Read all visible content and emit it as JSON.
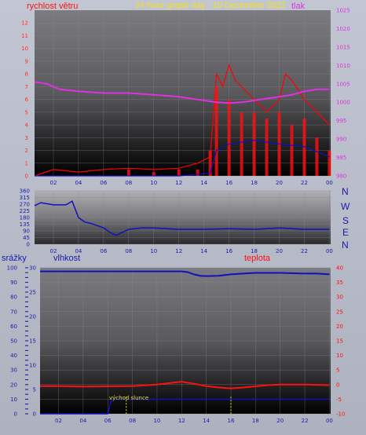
{
  "header": {
    "wind_label": "rychlost větru",
    "title": "24 hour graph day : 10 December 2021",
    "pressure_label": "tlak"
  },
  "direction": {
    "letters": [
      "N",
      "W",
      "S",
      "E",
      "N"
    ]
  },
  "lower": {
    "precip_label": "srážky",
    "humidity_label": "vlhkost",
    "temperature_label": "teplota",
    "sunrise_label": "východ slunce"
  },
  "colors": {
    "wind": "#ff1010",
    "gust": "#ff0000",
    "pressure": "#e030e0",
    "direction": "#1010c0",
    "humidity": "#1010c0",
    "temperature": "#ff1010",
    "sun_marker": "#f0e020",
    "axis_left": "#ff3030",
    "axis_right": "#e030e0"
  },
  "chart_data": [
    {
      "type": "line",
      "title": "24 hour graph day : 10 December 2021",
      "xlabel": "",
      "ylabel_left": "rychlost větru",
      "ylabel_right": "tlak",
      "x_ticks": [
        "02",
        "04",
        "06",
        "08",
        "10",
        "12",
        "14",
        "16",
        "18",
        "20",
        "22",
        "00"
      ],
      "xlim_hours": [
        0.5,
        24.1
      ],
      "ylim_left": [
        0,
        13
      ],
      "yticks_left": [
        0,
        1,
        2,
        3,
        4,
        5,
        6,
        7,
        8,
        9,
        10,
        11,
        12
      ],
      "ylim_right": [
        980,
        1025
      ],
      "yticks_right": [
        980,
        985,
        990,
        995,
        1000,
        1005,
        1010,
        1015,
        1020,
        1025
      ],
      "series": [
        {
          "name": "wind speed",
          "axis": "left",
          "hours": [
            0.5,
            2,
            4,
            6,
            8,
            10,
            12,
            13.5,
            14.5,
            15,
            16,
            17,
            18,
            19,
            20,
            21,
            22,
            23,
            24
          ],
          "values": [
            0,
            0,
            0,
            0,
            0.5,
            0.3,
            0.5,
            0.5,
            2,
            7,
            6,
            5,
            5,
            4.5,
            5,
            4,
            4.5,
            3,
            2
          ]
        },
        {
          "name": "gust",
          "axis": "left",
          "hours": [
            0.5,
            2,
            4,
            6,
            8,
            10,
            12,
            13.5,
            14.5,
            15,
            15.5,
            16,
            16.5,
            17,
            18,
            19,
            20,
            20.5,
            21,
            22,
            23,
            24
          ],
          "values": [
            0,
            0.5,
            0.3,
            0.5,
            0.6,
            0.5,
            0.6,
            1,
            1.5,
            8,
            7,
            8.7,
            7.5,
            7,
            6,
            5,
            6,
            8,
            7.5,
            6,
            5,
            4
          ]
        },
        {
          "name": "wind average",
          "axis": "left",
          "hours": [
            0.5,
            4,
            8,
            12,
            14.5,
            15,
            16,
            18,
            20,
            22,
            24
          ],
          "values": [
            0,
            0,
            0,
            0,
            0.2,
            2,
            2.5,
            2.8,
            2.5,
            2.3,
            1.5
          ]
        },
        {
          "name": "pressure",
          "axis": "right",
          "hours": [
            0.5,
            1.5,
            2.5,
            4,
            6,
            8,
            10,
            12,
            14,
            15,
            16,
            17,
            18,
            19,
            20,
            21,
            22,
            23,
            24
          ],
          "values": [
            1005.5,
            1005,
            1003.5,
            1003,
            1002.5,
            1002.5,
            1002,
            1001.5,
            1000.5,
            1000,
            999.8,
            1000,
            1000.5,
            1001,
            1001.5,
            1002,
            1003,
            1003.5,
            1003.5
          ]
        }
      ]
    },
    {
      "type": "line",
      "title": "",
      "ylabel": "",
      "x_ticks": [
        "02",
        "04",
        "06",
        "08",
        "10",
        "12",
        "14",
        "16",
        "18",
        "20",
        "22",
        "00"
      ],
      "xlim_hours": [
        0.5,
        24.1
      ],
      "ylim": [
        0,
        360
      ],
      "yticks": [
        0,
        45,
        90,
        135,
        180,
        225,
        270,
        315,
        360
      ],
      "ytick_labels": [
        "0",
        "45",
        "90",
        "135",
        "180",
        "225",
        "270",
        "315",
        "360"
      ],
      "series": [
        {
          "name": "wind direction",
          "hours": [
            0.5,
            1,
            2,
            3,
            3.5,
            4,
            4.5,
            5,
            6,
            6.5,
            7,
            8,
            9,
            10,
            12,
            14,
            16,
            18,
            20,
            22,
            24
          ],
          "values": [
            260,
            280,
            265,
            265,
            290,
            180,
            150,
            140,
            110,
            80,
            60,
            100,
            110,
            110,
            100,
            100,
            105,
            100,
            110,
            100,
            100
          ]
        }
      ]
    },
    {
      "type": "line",
      "title": "",
      "ylabel_left": "vlhkost",
      "ylabel_right": "teplota",
      "ylabel_precip": "srážky",
      "x_ticks": [
        "02",
        "04",
        "06",
        "08",
        "10",
        "12",
        "14",
        "16",
        "18",
        "20",
        "22",
        "00"
      ],
      "xlim_hours": [
        0.5,
        24.1
      ],
      "ylim_humidity": [
        0,
        100
      ],
      "yticks_humidity": [
        0,
        10,
        20,
        30,
        40,
        50,
        60,
        70,
        80,
        90,
        100
      ],
      "ylim_precip": [
        0,
        30
      ],
      "yticks_precip": [
        0,
        5,
        10,
        15,
        20,
        25,
        30
      ],
      "ylim_temperature": [
        -10,
        40
      ],
      "yticks_temperature": [
        -10,
        -5,
        0,
        5,
        10,
        15,
        20,
        25,
        30,
        35,
        40
      ],
      "sunrise_hour": 7.5,
      "sunset_hour": 16,
      "series": [
        {
          "name": "humidity",
          "axis": "humidity",
          "hours": [
            0.5,
            4,
            8,
            12,
            12.5,
            13,
            13.5,
            14,
            15,
            16,
            17,
            18,
            20,
            22,
            23,
            24
          ],
          "values": [
            97.5,
            97.5,
            97.5,
            97.5,
            97,
            95.5,
            94.5,
            94.3,
            94.5,
            95.5,
            96,
            96.5,
            96.5,
            96,
            96,
            95.5
          ]
        },
        {
          "name": "temperature",
          "axis": "temperature",
          "hours": [
            0.5,
            2,
            4,
            6,
            8,
            10,
            11,
            12,
            13,
            14,
            15,
            16,
            17,
            18,
            19,
            20,
            22,
            24
          ],
          "values": [
            -0.5,
            -0.5,
            -0.7,
            -0.6,
            -0.5,
            0,
            0.5,
            1,
            0.3,
            -0.5,
            -1,
            -1.3,
            -1,
            -0.6,
            -0.2,
            0,
            0,
            -0.2
          ]
        },
        {
          "name": "precipitation",
          "axis": "precip",
          "hours": [
            0.5,
            6,
            6.3,
            7,
            8,
            10,
            12,
            14,
            16,
            18,
            20,
            22,
            24
          ],
          "values": [
            0,
            0,
            3,
            3,
            3,
            3,
            3,
            3,
            3,
            3,
            3,
            3,
            3
          ]
        }
      ]
    }
  ]
}
